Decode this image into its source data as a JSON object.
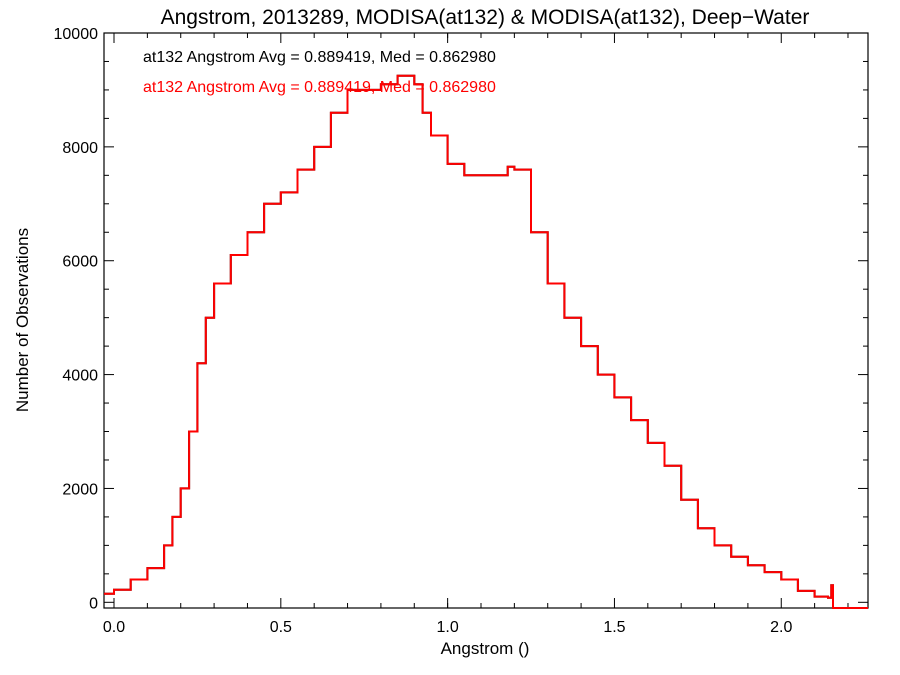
{
  "chart_data": {
    "type": "line",
    "title": "Angstrom, 2013289, MODISA(at132) & MODISA(at132), Deep−Water",
    "xlabel": "Angstrom ()",
    "ylabel": "Number of Observations",
    "xlim": [
      -0.03,
      2.26
    ],
    "ylim": [
      -100,
      10000
    ],
    "xticks": [
      0.0,
      0.5,
      1.0,
      1.5,
      2.0
    ],
    "xtick_labels": [
      "0.0",
      "0.5",
      "1.0",
      "1.5",
      "2.0"
    ],
    "yticks": [
      0,
      2000,
      4000,
      6000,
      8000,
      10000
    ],
    "ytick_labels": [
      "0",
      "2000",
      "4000",
      "6000",
      "8000",
      "10000"
    ],
    "annotations": [
      {
        "text": "at132 Angstrom Avg = 0.889419, Med = 0.862980",
        "color": "#000000"
      },
      {
        "text": "at132 Angstrom Avg = 0.889419, Med = 0.862980",
        "color": "#ff0000"
      }
    ],
    "series": [
      {
        "color": "#000000",
        "style": "step",
        "x": [
          -0.03,
          0.0,
          0.05,
          0.1,
          0.15,
          0.175,
          0.2,
          0.225,
          0.25,
          0.275,
          0.3,
          0.35,
          0.4,
          0.45,
          0.5,
          0.55,
          0.6,
          0.65,
          0.7,
          0.75,
          0.8,
          0.85,
          0.9,
          0.925,
          0.95,
          1.0,
          1.05,
          1.1,
          1.15,
          1.18,
          1.2,
          1.25,
          1.3,
          1.35,
          1.4,
          1.45,
          1.5,
          1.55,
          1.6,
          1.65,
          1.7,
          1.75,
          1.8,
          1.85,
          1.9,
          1.95,
          2.0,
          2.05,
          2.1,
          2.13,
          2.14,
          2.15,
          2.155,
          2.26
        ],
        "y": [
          150,
          220,
          400,
          600,
          1000,
          1500,
          2000,
          3000,
          4200,
          5000,
          5600,
          6100,
          6500,
          7000,
          7200,
          7600,
          8000,
          8600,
          9000,
          9000,
          9100,
          9250,
          9100,
          8600,
          8200,
          7700,
          7500,
          7500,
          7500,
          7650,
          7600,
          6500,
          5600,
          5000,
          4500,
          4000,
          3600,
          3200,
          2800,
          2400,
          1800,
          1300,
          1000,
          800,
          650,
          530,
          400,
          200,
          100,
          100,
          80,
          300,
          -100,
          -100
        ]
      },
      {
        "color": "#ff0000",
        "style": "step",
        "x": [
          -0.03,
          0.0,
          0.05,
          0.1,
          0.15,
          0.175,
          0.2,
          0.225,
          0.25,
          0.275,
          0.3,
          0.35,
          0.4,
          0.45,
          0.5,
          0.55,
          0.6,
          0.65,
          0.7,
          0.75,
          0.8,
          0.85,
          0.9,
          0.925,
          0.95,
          1.0,
          1.05,
          1.1,
          1.15,
          1.18,
          1.2,
          1.25,
          1.3,
          1.35,
          1.4,
          1.45,
          1.5,
          1.55,
          1.6,
          1.65,
          1.7,
          1.75,
          1.8,
          1.85,
          1.9,
          1.95,
          2.0,
          2.05,
          2.1,
          2.13,
          2.14,
          2.15,
          2.155,
          2.26
        ],
        "y": [
          150,
          220,
          400,
          600,
          1000,
          1500,
          2000,
          3000,
          4200,
          5000,
          5600,
          6100,
          6500,
          7000,
          7200,
          7600,
          8000,
          8600,
          9000,
          9000,
          9100,
          9250,
          9100,
          8600,
          8200,
          7700,
          7500,
          7500,
          7500,
          7650,
          7600,
          6500,
          5600,
          5000,
          4500,
          4000,
          3600,
          3200,
          2800,
          2400,
          1800,
          1300,
          1000,
          800,
          650,
          530,
          400,
          200,
          100,
          100,
          80,
          300,
          -100,
          -100
        ]
      }
    ]
  }
}
